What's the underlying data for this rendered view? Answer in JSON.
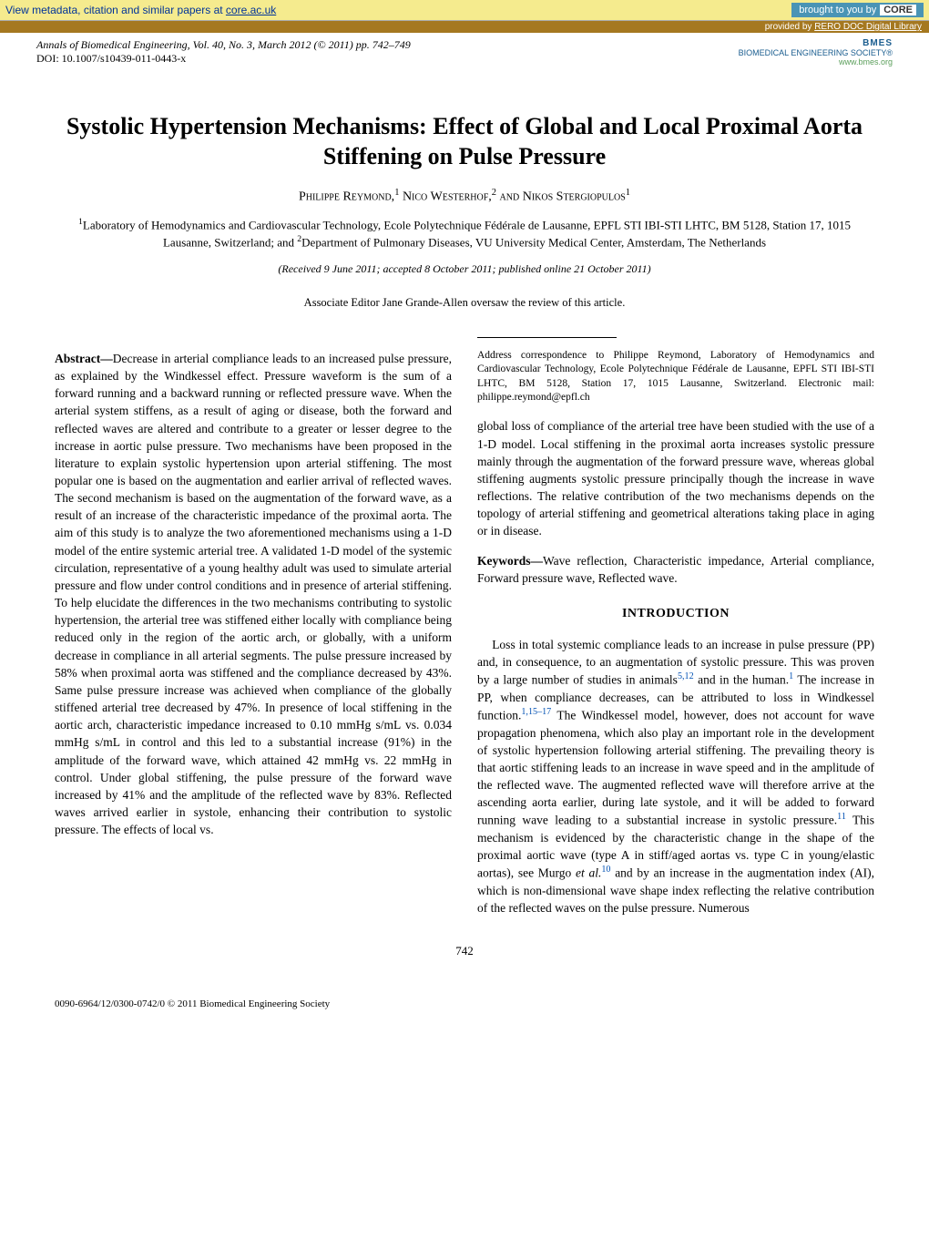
{
  "banner": {
    "left_prefix": "View metadata, citation and similar papers at ",
    "left_link": "core.ac.uk",
    "brought_by": "brought to you by ",
    "core_label": "CORE",
    "provided_prefix": "provided by ",
    "provided_link": "RERO DOC Digital Library"
  },
  "journal": {
    "citation": "Annals of Biomedical Engineering, Vol. 40, No. 3, March 2012 (© 2011) pp. 742–749",
    "doi": "DOI: 10.1007/s10439-011-0443-x",
    "society_name": "BMES",
    "society_sub": "BIOMEDICAL ENGINEERING SOCIETY®",
    "society_url": "www.bmes.org"
  },
  "title": "Systolic Hypertension Mechanisms: Effect of Global and Local Proximal Aorta Stiffening on Pulse Pressure",
  "authors_html": "Philippe Reymond,<sup>1</sup> Nico Westerhof,<sup>2</sup> and Nikos Stergiopulos<sup>1</sup>",
  "affiliations_html": "<sup>1</sup>Laboratory of Hemodynamics and Cardiovascular Technology, Ecole Polytechnique Fédérale de Lausanne, EPFL STI IBI-STI LHTC, BM 5128, Station 17, 1015 Lausanne, Switzerland; and <sup>2</sup>Department of Pulmonary Diseases, VU University Medical Center, Amsterdam, The Netherlands",
  "received": "(Received 9 June 2011; accepted 8 October 2011; published online 21 October 2011)",
  "editor": "Associate Editor Jane Grande-Allen oversaw the review of this article.",
  "abstract_label": "Abstract—",
  "abstract_text": "Decrease in arterial compliance leads to an increased pulse pressure, as explained by the Windkessel effect. Pressure waveform is the sum of a forward running and a backward running or reflected pressure wave. When the arterial system stiffens, as a result of aging or disease, both the forward and reflected waves are altered and contribute to a greater or lesser degree to the increase in aortic pulse pressure. Two mechanisms have been proposed in the literature to explain systolic hypertension upon arterial stiffening. The most popular one is based on the augmentation and earlier arrival of reflected waves. The second mechanism is based on the augmentation of the forward wave, as a result of an increase of the characteristic impedance of the proximal aorta. The aim of this study is to analyze the two aforementioned mechanisms using a 1-D model of the entire systemic arterial tree. A validated 1-D model of the systemic circulation, representative of a young healthy adult was used to simulate arterial pressure and flow under control conditions and in presence of arterial stiffening. To help elucidate the differences in the two mechanisms contributing to systolic hypertension, the arterial tree was stiffened either locally with compliance being reduced only in the region of the aortic arch, or globally, with a uniform decrease in compliance in all arterial segments. The pulse pressure increased by 58% when proximal aorta was stiffened and the compliance decreased by 43%. Same pulse pressure increase was achieved when compliance of the globally stiffened arterial tree decreased by 47%. In presence of local stiffening in the aortic arch, characteristic impedance increased to 0.10 mmHg s/mL vs. 0.034 mmHg s/mL in control and this led to a substantial increase (91%) in the amplitude of the forward wave, which attained 42 mmHg vs. 22 mmHg in control. Under global stiffening, the pulse pressure of the forward wave increased by 41% and the amplitude of the reflected wave by 83%. Reflected waves arrived earlier in systole, enhancing their contribution to systolic pressure. The effects of local vs. ",
  "abstract_cont": "global loss of compliance of the arterial tree have been studied with the use of a 1-D model. Local stiffening in the proximal aorta increases systolic pressure mainly through the augmentation of the forward pressure wave, whereas global stiffening augments systolic pressure principally though the increase in wave reflections. The relative contribution of the two mechanisms depends on the topology of arterial stiffening and geometrical alterations taking place in aging or in disease.",
  "keywords_label": "Keywords—",
  "keywords_text": "Wave reflection, Characteristic impedance, Arterial compliance, Forward pressure wave, Reflected wave.",
  "intro_heading": "INTRODUCTION",
  "intro_html": "Loss in total systemic compliance leads to an increase in pulse pressure (PP) and, in consequence, to an augmentation of systolic pressure. This was proven by a large number of studies in animals<sup class=\"ref-link\">5,12</sup> and in the human.<sup class=\"ref-link\">1</sup> The increase in PP, when compliance decreases, can be attributed to loss in Windkessel function.<sup class=\"ref-link\">1,15–17</sup> The Windkessel model, however, does not account for wave propagation phenomena, which also play an important role in the development of systolic hypertension following arterial stiffening. The prevailing theory is that aortic stiffening leads to an increase in wave speed and in the amplitude of the reflected wave. The augmented reflected wave will therefore arrive at the ascending aorta earlier, during late systole, and it will be added to forward running wave leading to a substantial increase in systolic pressure.<sup class=\"ref-link\">11</sup> This mechanism is evidenced by the characteristic change in the shape of the proximal aortic wave (type A in stiff/aged aortas vs. type C in young/elastic aortas), see Murgo <i>et al.</i><sup class=\"ref-link\">10</sup> and by an increase in the augmentation index (AI), which is non-dimensional wave shape index reflecting the relative contribution of the reflected waves on the pulse pressure. Numerous",
  "footnote": "Address correspondence to Philippe Reymond, Laboratory of Hemodynamics and Cardiovascular Technology, Ecole Polytechnique Fédérale de Lausanne, EPFL STI IBI-STI LHTC, BM 5128, Station 17, 1015 Lausanne, Switzerland. Electronic mail: philippe.reymond@epfl.ch",
  "page_number": "742",
  "bottom_copyright": "0090-6964/12/0300-0742/0 © 2011 Biomedical Engineering Society"
}
